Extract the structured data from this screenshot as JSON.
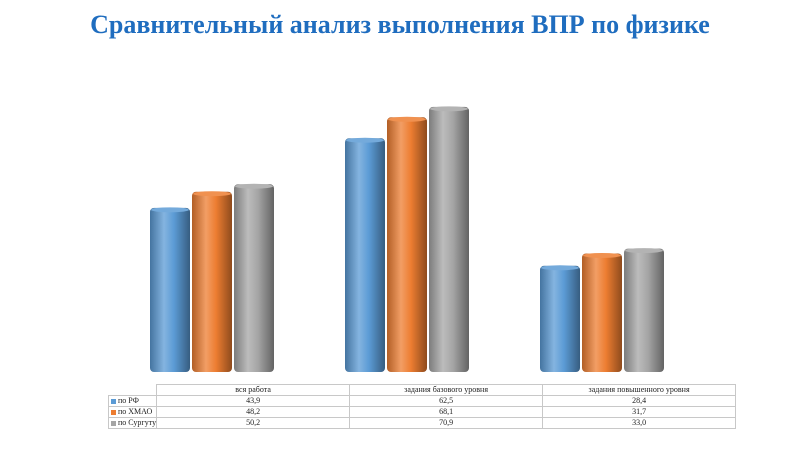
{
  "title": "Сравнительный анализ выполнения ВПР по физике",
  "colors": {
    "blue": "#5b9bd5",
    "orange": "#ed7d31",
    "gray": "#a5a5a5",
    "title": "#1f6dbf"
  },
  "chart_data": {
    "type": "bar",
    "style": "3d-cylinder",
    "categories": [
      "вся работа",
      "задания базового уровня",
      "задания повышенного уровня"
    ],
    "series": [
      {
        "name": "по РФ",
        "values": [
          43.9,
          62.5,
          28.4
        ],
        "color": "#5b9bd5"
      },
      {
        "name": "по ХМАО",
        "values": [
          48.2,
          68.1,
          31.7
        ],
        "color": "#ed7d31"
      },
      {
        "name": "по Сургуту",
        "values": [
          50.2,
          70.9,
          33.0
        ],
        "color": "#a5a5a5"
      }
    ],
    "labels": [
      [
        "43,9",
        "62,5",
        "28,4"
      ],
      [
        "48,2",
        "68,1",
        "31,7"
      ],
      [
        "50,2",
        "70,9",
        "33,0"
      ]
    ],
    "legend": "data-table-below",
    "grid": false
  }
}
